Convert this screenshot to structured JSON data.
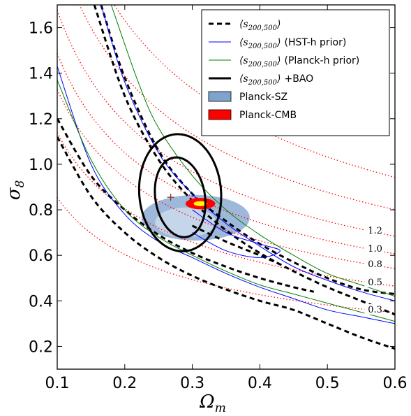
{
  "chart_data": {
    "type": "contour",
    "xlabel": "Ω",
    "xlabel_sub": "m",
    "ylabel": "σ",
    "ylabel_sub": "8",
    "xlim": [
      0.1,
      0.6
    ],
    "ylim": [
      0.1,
      1.7
    ],
    "xticks": [
      "0.1",
      "0.2",
      "0.3",
      "0.4",
      "0.5",
      "0.6"
    ],
    "yticks": [
      "0.2",
      "0.4",
      "0.6",
      "0.8",
      "1.0",
      "1.2",
      "1.4",
      "1.6"
    ],
    "legend": {
      "placement": "top-right",
      "entries": [
        {
          "math": "⟨s",
          "sub": "200,500",
          "close": "⟩",
          "suffix": "",
          "style": "dashed",
          "color": "#000000"
        },
        {
          "math": "⟨s",
          "sub": "200,500",
          "close": "⟩",
          "suffix": "(HST-h prior)",
          "style": "solid",
          "color": "#0000ff"
        },
        {
          "math": "⟨s",
          "sub": "200,500",
          "close": "⟩",
          "suffix": "(Planck-h prior)",
          "style": "solid",
          "color": "#008000"
        },
        {
          "math": "⟨s",
          "sub": "200,500",
          "close": "⟩",
          "suffix": "+BAO",
          "style": "thick",
          "color": "#000000"
        },
        {
          "math": "",
          "sub": "",
          "close": "",
          "suffix": "Planck-SZ",
          "style": "patch",
          "color": "#7fa3cc"
        },
        {
          "math": "",
          "sub": "",
          "close": "",
          "suffix": "Planck-CMB",
          "style": "patch",
          "color": "#ff0000"
        }
      ]
    },
    "iso_lines": [
      {
        "label": "0.3",
        "C": 0.27
      },
      {
        "label": "0.5",
        "C": 0.36
      },
      {
        "label": "0.8",
        "C": 0.42
      },
      {
        "label": "1.0",
        "C": 0.47
      },
      {
        "label": "1.2",
        "C": 0.53
      },
      {
        "label": "",
        "C": 0.62
      },
      {
        "label": "",
        "C": 0.73
      }
    ],
    "dashed_contours": [
      {
        "name": "dashed-outer-upper",
        "points": [
          [
            0.155,
            1.7
          ],
          [
            0.2,
            1.3
          ],
          [
            0.25,
            1.02
          ],
          [
            0.3,
            0.84
          ],
          [
            0.35,
            0.71
          ],
          [
            0.4,
            0.61
          ],
          [
            0.45,
            0.53
          ],
          [
            0.5,
            0.46
          ],
          [
            0.55,
            0.4
          ],
          [
            0.6,
            0.34
          ]
        ]
      },
      {
        "name": "dashed-inner-upper",
        "points": [
          [
            0.165,
            1.7
          ],
          [
            0.2,
            1.38
          ],
          [
            0.25,
            1.06
          ],
          [
            0.3,
            0.87
          ],
          [
            0.35,
            0.75
          ],
          [
            0.4,
            0.65
          ],
          [
            0.45,
            0.57
          ],
          [
            0.5,
            0.5
          ],
          [
            0.55,
            0.45
          ],
          [
            0.6,
            0.43
          ]
        ]
      },
      {
        "name": "dashed-inner-lower",
        "points": [
          [
            0.1,
            1.2
          ],
          [
            0.15,
            0.95
          ],
          [
            0.2,
            0.8
          ],
          [
            0.25,
            0.69
          ],
          [
            0.3,
            0.61
          ],
          [
            0.35,
            0.55
          ],
          [
            0.4,
            0.5
          ],
          [
            0.45,
            0.46
          ],
          [
            0.48,
            0.44
          ]
        ]
      },
      {
        "name": "dashed-outer-lower",
        "points": [
          [
            0.1,
            1.12
          ],
          [
            0.15,
            0.86
          ],
          [
            0.2,
            0.7
          ],
          [
            0.25,
            0.59
          ],
          [
            0.3,
            0.51
          ],
          [
            0.35,
            0.45
          ],
          [
            0.4,
            0.4
          ],
          [
            0.45,
            0.36
          ],
          [
            0.5,
            0.3
          ],
          [
            0.55,
            0.24
          ],
          [
            0.6,
            0.19
          ]
        ]
      },
      {
        "name": "dashed-middle-right",
        "points": [
          [
            0.3,
            0.73
          ],
          [
            0.35,
            0.66
          ],
          [
            0.4,
            0.6
          ],
          [
            0.43,
            0.56
          ]
        ]
      }
    ],
    "blue_contours": [
      {
        "name": "blue-upper",
        "points": [
          [
            0.165,
            1.7
          ],
          [
            0.2,
            1.36
          ],
          [
            0.25,
            1.05
          ],
          [
            0.3,
            0.87
          ],
          [
            0.35,
            0.74
          ],
          [
            0.4,
            0.64
          ],
          [
            0.45,
            0.55
          ],
          [
            0.5,
            0.49
          ],
          [
            0.55,
            0.44
          ],
          [
            0.6,
            0.4
          ]
        ]
      },
      {
        "name": "blue-lower",
        "points": [
          [
            0.1,
            1.43
          ],
          [
            0.15,
            1.0
          ],
          [
            0.2,
            0.78
          ],
          [
            0.25,
            0.66
          ],
          [
            0.3,
            0.59
          ],
          [
            0.35,
            0.52
          ],
          [
            0.4,
            0.46
          ],
          [
            0.45,
            0.41
          ],
          [
            0.5,
            0.36
          ],
          [
            0.55,
            0.33
          ],
          [
            0.6,
            0.3
          ]
        ]
      },
      {
        "name": "blue-inner",
        "points": [
          [
            0.3,
            0.8
          ],
          [
            0.35,
            0.7
          ],
          [
            0.4,
            0.65
          ],
          [
            0.43,
            0.62
          ],
          [
            0.4,
            0.59
          ],
          [
            0.35,
            0.62
          ],
          [
            0.3,
            0.7
          ]
        ]
      }
    ],
    "green_contours": [
      {
        "name": "green-upper",
        "points": [
          [
            0.18,
            1.7
          ],
          [
            0.22,
            1.36
          ],
          [
            0.25,
            1.16
          ],
          [
            0.3,
            0.95
          ],
          [
            0.35,
            0.8
          ],
          [
            0.4,
            0.69
          ],
          [
            0.45,
            0.6
          ],
          [
            0.5,
            0.52
          ],
          [
            0.55,
            0.47
          ],
          [
            0.6,
            0.42
          ]
        ]
      },
      {
        "name": "green-lower",
        "points": [
          [
            0.1,
            1.37
          ],
          [
            0.15,
            1.02
          ],
          [
            0.2,
            0.8
          ],
          [
            0.25,
            0.68
          ],
          [
            0.3,
            0.6
          ],
          [
            0.35,
            0.53
          ],
          [
            0.4,
            0.47
          ],
          [
            0.45,
            0.43
          ],
          [
            0.5,
            0.39
          ],
          [
            0.55,
            0.35
          ],
          [
            0.6,
            0.31
          ]
        ]
      }
    ],
    "bao_contours": [
      {
        "name": "bao-outer",
        "cx": 0.282,
        "cy": 0.875,
        "rx": 0.06,
        "ry": 0.26,
        "tilt": 0.39
      },
      {
        "name": "bao-inner",
        "cx": 0.282,
        "cy": 0.855,
        "rx": 0.036,
        "ry": 0.18,
        "tilt": 0.39
      }
    ],
    "planck_sz": [
      {
        "name": "planck-sz-outer",
        "cx": 0.305,
        "cy": 0.765,
        "rx": 0.08,
        "ry": 0.1,
        "color": "#9db8da"
      },
      {
        "name": "planck-sz-inner",
        "cx": 0.29,
        "cy": 0.745,
        "rx": 0.045,
        "ry": 0.065,
        "color": "#c5d5ea"
      }
    ],
    "planck_cmb": [
      {
        "name": "planck-cmb-outer",
        "cx": 0.312,
        "cy": 0.827,
        "rx": 0.022,
        "ry": 0.025,
        "color": "#ff0000"
      },
      {
        "name": "planck-cmb-inner",
        "cx": 0.312,
        "cy": 0.827,
        "rx": 0.01,
        "ry": 0.011,
        "color": "#ffff00"
      }
    ],
    "markers": [
      {
        "name": "plus-marker",
        "x": 0.268,
        "y": 0.855
      }
    ]
  }
}
